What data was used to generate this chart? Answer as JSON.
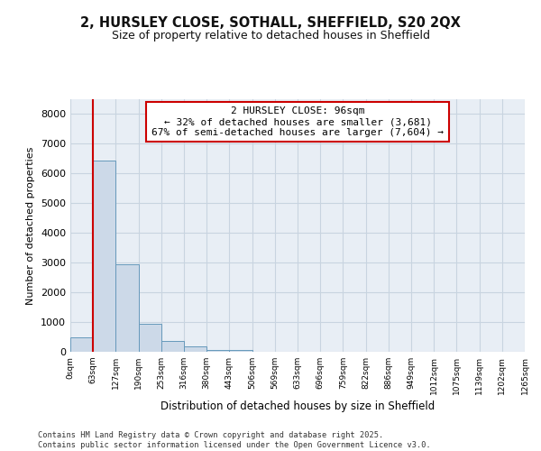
{
  "title_line1": "2, HURSLEY CLOSE, SOTHALL, SHEFFIELD, S20 2QX",
  "title_line2": "Size of property relative to detached houses in Sheffield",
  "xlabel": "Distribution of detached houses by size in Sheffield",
  "ylabel": "Number of detached properties",
  "footer_line1": "Contains HM Land Registry data © Crown copyright and database right 2025.",
  "footer_line2": "Contains public sector information licensed under the Open Government Licence v3.0.",
  "bin_labels": [
    "0sqm",
    "63sqm",
    "127sqm",
    "190sqm",
    "253sqm",
    "316sqm",
    "380sqm",
    "443sqm",
    "506sqm",
    "569sqm",
    "633sqm",
    "696sqm",
    "759sqm",
    "822sqm",
    "886sqm",
    "949sqm",
    "1012sqm",
    "1075sqm",
    "1139sqm",
    "1202sqm",
    "1265sqm"
  ],
  "bar_values": [
    500,
    6450,
    2950,
    950,
    370,
    175,
    75,
    50,
    0,
    0,
    0,
    0,
    0,
    0,
    0,
    0,
    0,
    0,
    0,
    0
  ],
  "bar_color": "#ccd9e8",
  "bar_edge_color": "#6699bb",
  "grid_color": "#c8d4e0",
  "background_color": "#e8eef5",
  "vline_x": 1.0,
  "vline_color": "#cc0000",
  "annotation_text": "2 HURSLEY CLOSE: 96sqm\n← 32% of detached houses are smaller (3,681)\n67% of semi-detached houses are larger (7,604) →",
  "annotation_box_color": "#ffffff",
  "annotation_box_edge_color": "#cc0000",
  "ylim": [
    0,
    8500
  ],
  "yticks": [
    0,
    1000,
    2000,
    3000,
    4000,
    5000,
    6000,
    7000,
    8000
  ]
}
